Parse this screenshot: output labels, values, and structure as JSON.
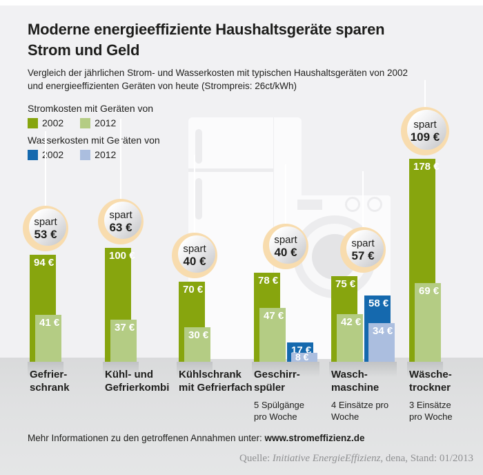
{
  "header": {
    "title_line1": "Moderne energieeffiziente Haushaltsgeräte sparen",
    "title_line2": "Strom und Geld",
    "subtitle_line1": "Vergleich der jährlichen Strom- und Wasserkosten mit typischen Haushaltsgeräten von 2002",
    "subtitle_line2": "und energieeffizienten Geräten von heute (Strompreis: 26ct/kWh)"
  },
  "legend": {
    "strom_label": "Stromkosten mit Geräten von",
    "wasser_label": "Wasserkosten mit Geräten von",
    "years": [
      "2002",
      "2012"
    ],
    "colors": {
      "strom_2002": "#87a50e",
      "strom_2012": "#b4cc84",
      "wasser_2002": "#1569ae",
      "wasser_2012": "#abbedf"
    },
    "badge_color": "#f8dcae"
  },
  "chart_data": {
    "type": "bar",
    "unit": "€ pro Jahr",
    "value_suffix": " €",
    "savings_word": "spart",
    "grid": false,
    "legend_position": "top-left",
    "ylim": [
      0,
      185
    ],
    "series_names": [
      "Stromkosten 2002",
      "Stromkosten 2012",
      "Wasserkosten 2002",
      "Wasserkosten 2012"
    ],
    "groups": [
      {
        "label_lines": [
          "Gefrier-",
          "schrank"
        ],
        "note_lines": [],
        "strom": {
          "y2002": 94,
          "y2012": 41
        },
        "wasser": null,
        "savings": "53 €"
      },
      {
        "label_lines": [
          "Kühl- und",
          "Gefrierkombi"
        ],
        "note_lines": [],
        "strom": {
          "y2002": 100,
          "y2012": 37
        },
        "wasser": null,
        "savings": "63 €"
      },
      {
        "label_lines": [
          "Kühlschrank",
          "mit Gefrierfach"
        ],
        "note_lines": [],
        "strom": {
          "y2002": 70,
          "y2012": 30
        },
        "wasser": null,
        "savings": "40 €"
      },
      {
        "label_lines": [
          "Geschirr-",
          "spüler"
        ],
        "note_lines": [
          "5 Spülgänge",
          "pro Woche"
        ],
        "strom": {
          "y2002": 78,
          "y2012": 47
        },
        "wasser": {
          "y2002": 17,
          "y2012": 8
        },
        "savings": "40 €"
      },
      {
        "label_lines": [
          "Wasch-",
          "maschine"
        ],
        "note_lines": [
          "4 Einsätze pro",
          "Woche"
        ],
        "strom": {
          "y2002": 75,
          "y2012": 42
        },
        "wasser": {
          "y2002": 58,
          "y2012": 34
        },
        "savings": "57 €"
      },
      {
        "label_lines": [
          "Wäsche-",
          "trockner"
        ],
        "note_lines": [
          "3 Einsätze",
          "pro Woche"
        ],
        "strom": {
          "y2002": 178,
          "y2012": 69
        },
        "wasser": null,
        "savings": "109 €"
      }
    ]
  },
  "footer": {
    "info_text": "Mehr Informationen zu den getroffenen Annahmen unter: ",
    "info_link": "www.stromeffizienz.de",
    "source_prefix": "Quelle: ",
    "source_italic": "Initiative EnergieEffizienz,",
    "source_rest": " dena, Stand: 01/2013"
  }
}
